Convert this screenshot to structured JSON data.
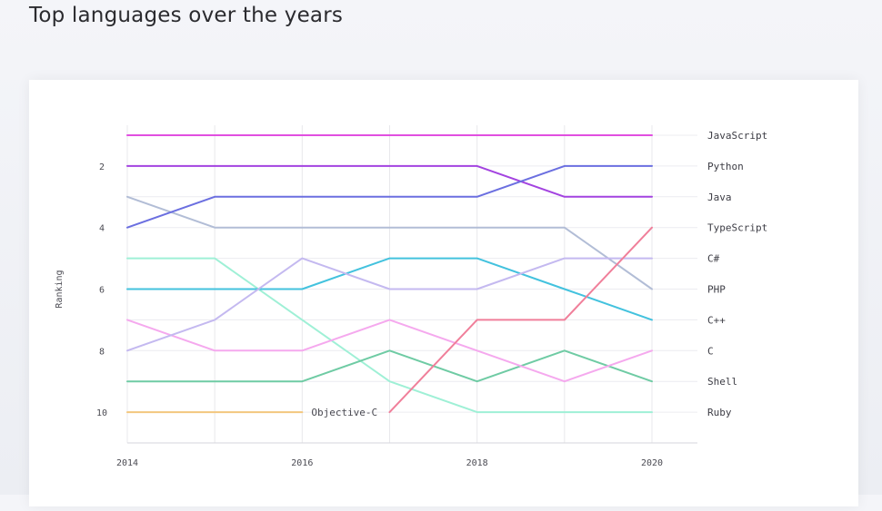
{
  "page": {
    "title": "Top languages over the years"
  },
  "chart_data": {
    "type": "line",
    "title": "Top languages over the years",
    "xlabel": "",
    "ylabel": "Ranking",
    "x": [
      2014,
      2015,
      2016,
      2017,
      2018,
      2019,
      2020
    ],
    "xticks": [
      "2014",
      "2016",
      "2018",
      "2020"
    ],
    "yticks": [
      "2",
      "4",
      "6",
      "8",
      "10"
    ],
    "ylim": [
      11,
      1
    ],
    "grid": true,
    "series": [
      {
        "name": "JavaScript",
        "color": "#e14fe0",
        "values": [
          1,
          1,
          1,
          1,
          1,
          1,
          1
        ]
      },
      {
        "name": "Python",
        "color": "#6b6fe0",
        "values": [
          4,
          3,
          3,
          3,
          3,
          2,
          2
        ]
      },
      {
        "name": "Java",
        "color": "#a343e0",
        "values": [
          2,
          2,
          2,
          2,
          2,
          3,
          3
        ]
      },
      {
        "name": "TypeScript",
        "color": "#f07f9a",
        "values": [
          null,
          null,
          null,
          10,
          7,
          7,
          4
        ]
      },
      {
        "name": "C#",
        "color": "#c4b9f0",
        "values": [
          8,
          7,
          5,
          6,
          6,
          5,
          5
        ]
      },
      {
        "name": "PHP",
        "color": "#b2bdd6",
        "values": [
          3,
          4,
          4,
          4,
          4,
          4,
          6
        ]
      },
      {
        "name": "C++",
        "color": "#43c2de",
        "values": [
          6,
          6,
          6,
          5,
          5,
          6,
          7
        ]
      },
      {
        "name": "C",
        "color": "#f5a9ee",
        "values": [
          7,
          8,
          8,
          7,
          8,
          9,
          8
        ]
      },
      {
        "name": "Shell",
        "color": "#6fcba4",
        "values": [
          9,
          9,
          9,
          8,
          9,
          8,
          9
        ]
      },
      {
        "name": "Ruby",
        "color": "#9ff0d6",
        "values": [
          5,
          5,
          7,
          9,
          10,
          10,
          10
        ]
      },
      {
        "name": "Objective-C",
        "color": "#f3c77e",
        "values": [
          10,
          10,
          10,
          null,
          null,
          null,
          null
        ]
      }
    ],
    "annotations": [
      {
        "text": "Objective-C",
        "series": "Objective-C"
      }
    ]
  }
}
